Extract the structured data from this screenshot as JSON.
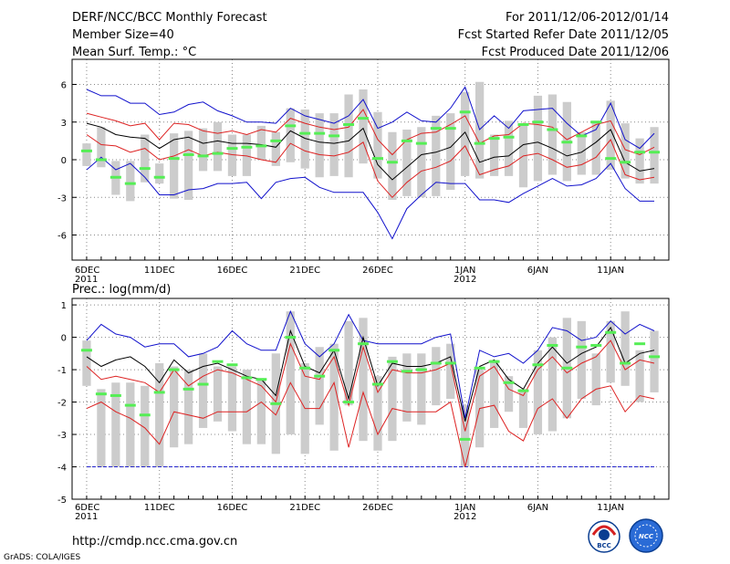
{
  "header": {
    "title": "DERF/NCC/BCC Monthly Forecast",
    "member_size": "Member Size=40",
    "panel1_label": "Mean Surf. Temp.: °C",
    "for_range": "For 2011/12/06-2012/01/14",
    "started": "Fcst Started Refer Date 2011/12/05",
    "produced": "Fcst Produced Date 2011/12/06"
  },
  "footer": {
    "url": "http://cmdp.ncc.cma.gov.cn",
    "credit": "GrADS: COLA/IGES",
    "logo_left": "BCC",
    "logo_right": "NCC"
  },
  "colors": {
    "box": "#cccccc",
    "median": "#55ee55",
    "mean": "#000000",
    "spread": "#dd2222",
    "extreme": "#1111cc",
    "floor": "#2222cc",
    "grid": "#888888"
  },
  "chart_data": [
    {
      "type": "box-plume",
      "name": "temperature",
      "title": "Mean Surf. Temp.: °C",
      "ylim": [
        -8,
        8
      ],
      "yticks": [
        -6,
        -3,
        0,
        3,
        6
      ],
      "ytick_labels": [
        "-6",
        "-3",
        "0",
        "3",
        "6"
      ],
      "xtick_labels": [
        {
          "day": 1,
          "label": "6DEC",
          "sub": "2011"
        },
        {
          "day": 6,
          "label": "11DEC"
        },
        {
          "day": 11,
          "label": "16DEC"
        },
        {
          "day": 16,
          "label": "21DEC"
        },
        {
          "day": 21,
          "label": "26DEC"
        },
        {
          "day": 27,
          "label": "1JAN",
          "sub": "2012"
        },
        {
          "day": 32,
          "label": "6JAN"
        },
        {
          "day": 37,
          "label": "11JAN"
        }
      ],
      "days": [
        1,
        2,
        3,
        4,
        5,
        6,
        7,
        8,
        9,
        10,
        11,
        12,
        13,
        14,
        15,
        16,
        17,
        18,
        19,
        20,
        21,
        22,
        23,
        24,
        25,
        26,
        27,
        28,
        29,
        30,
        31,
        32,
        33,
        34,
        35,
        36,
        37,
        38,
        39,
        40
      ],
      "box_low": [
        -0.5,
        -0.6,
        -2.8,
        -3.3,
        -1.8,
        -1.9,
        -3.1,
        -3.2,
        -0.9,
        -0.9,
        -1.3,
        -1.3,
        0.0,
        -0.5,
        -0.2,
        -0.7,
        -1.4,
        -1.3,
        -1.4,
        -0.3,
        -1.5,
        -3.2,
        -2.9,
        -3.0,
        -2.9,
        -2.4,
        -1.3,
        -1.5,
        -1.3,
        -1.3,
        -2.2,
        -1.7,
        -1.2,
        -1.7,
        -1.2,
        -1.2,
        -0.8,
        -1.5,
        -1.9,
        -1.9
      ],
      "box_high": [
        1.3,
        2.6,
        -0.1,
        -0.1,
        2.0,
        -0.3,
        2.1,
        2.3,
        2.5,
        3.0,
        2.0,
        2.0,
        2.7,
        2.2,
        4.1,
        4.0,
        3.7,
        3.7,
        5.2,
        5.6,
        3.8,
        2.2,
        2.4,
        2.6,
        3.5,
        3.7,
        5.4,
        6.2,
        2.0,
        3.1,
        2.9,
        5.1,
        5.2,
        4.6,
        2.2,
        3.0,
        4.7,
        2.9,
        1.7,
        2.6
      ],
      "median": [
        0.7,
        0.0,
        -1.4,
        -1.9,
        -0.7,
        -1.4,
        0.1,
        0.4,
        0.3,
        0.5,
        0.9,
        1.0,
        1.1,
        1.5,
        2.7,
        2.1,
        2.1,
        1.9,
        2.8,
        3.3,
        0.1,
        -0.2,
        1.5,
        1.3,
        2.5,
        2.5,
        3.8,
        1.3,
        1.7,
        1.8,
        2.8,
        3.0,
        2.4,
        1.4,
        1.9,
        3.0,
        0.1,
        -0.2,
        0.6,
        0.6
      ],
      "series": [
        {
          "name": "max",
          "role": "extreme",
          "values": [
            5.6,
            5.1,
            5.1,
            4.5,
            4.5,
            3.6,
            3.8,
            4.4,
            4.6,
            3.9,
            3.5,
            3.0,
            3.0,
            2.9,
            4.1,
            3.5,
            3.2,
            2.9,
            3.5,
            4.8,
            2.5,
            3.0,
            3.8,
            3.1,
            3.0,
            4.1,
            5.8,
            2.4,
            3.5,
            2.5,
            3.9,
            4.0,
            4.1,
            2.9,
            1.9,
            2.4,
            4.5,
            1.6,
            0.9,
            2.1
          ]
        },
        {
          "name": "mean+1sd",
          "role": "spread",
          "values": [
            3.7,
            3.4,
            3.1,
            2.7,
            2.9,
            1.6,
            2.9,
            2.8,
            2.3,
            2.1,
            2.3,
            2.0,
            2.4,
            2.2,
            3.3,
            2.9,
            2.6,
            2.4,
            2.6,
            4.0,
            1.6,
            0.4,
            1.6,
            2.1,
            2.2,
            2.8,
            3.5,
            1.3,
            1.9,
            2.0,
            2.9,
            2.8,
            2.6,
            1.6,
            2.2,
            2.8,
            3.1,
            0.8,
            0.4,
            1.0
          ]
        },
        {
          "name": "mean",
          "role": "mean",
          "values": [
            2.9,
            2.6,
            2.0,
            1.8,
            1.7,
            0.9,
            1.6,
            1.8,
            1.3,
            1.5,
            1.3,
            1.3,
            1.2,
            1.0,
            2.3,
            1.7,
            1.4,
            1.3,
            1.5,
            2.5,
            -0.4,
            -1.6,
            -0.6,
            0.4,
            0.6,
            1.0,
            2.2,
            -0.2,
            0.2,
            0.3,
            1.2,
            1.4,
            0.9,
            0.3,
            0.6,
            1.4,
            2.4,
            -0.2,
            -0.9,
            -0.7
          ]
        },
        {
          "name": "mean-1sd",
          "role": "spread",
          "values": [
            2.0,
            1.2,
            1.1,
            0.6,
            0.9,
            0.0,
            0.3,
            0.8,
            0.3,
            0.6,
            0.4,
            0.3,
            0.0,
            -0.2,
            1.3,
            0.7,
            0.4,
            0.3,
            0.6,
            1.4,
            -1.7,
            -3.0,
            -1.8,
            -0.9,
            -0.6,
            -0.1,
            1.1,
            -1.2,
            -0.8,
            -0.5,
            0.3,
            0.5,
            0.0,
            -0.6,
            -0.4,
            0.2,
            1.6,
            -1.2,
            -1.6,
            -1.4
          ]
        },
        {
          "name": "min",
          "role": "extreme",
          "values": [
            -0.8,
            0.2,
            -0.8,
            -0.3,
            -1.4,
            -2.8,
            -2.8,
            -2.4,
            -2.3,
            -1.9,
            -1.9,
            -1.8,
            -3.1,
            -1.8,
            -1.5,
            -1.4,
            -2.2,
            -2.6,
            -2.6,
            -2.6,
            -4.2,
            -6.3,
            -3.9,
            -2.8,
            -1.8,
            -1.9,
            -1.9,
            -3.2,
            -3.2,
            -3.4,
            -2.7,
            -2.1,
            -1.5,
            -2.1,
            -2.0,
            -1.5,
            -0.3,
            -2.3,
            -3.3,
            -3.3
          ]
        }
      ]
    },
    {
      "type": "box-plume",
      "name": "precipitation",
      "title": "Prec.: log(mm/d)",
      "ylim": [
        -5,
        1.2
      ],
      "yticks": [
        -5,
        -4,
        -3,
        -2,
        -1,
        0,
        1
      ],
      "ytick_labels": [
        "-5",
        "-4",
        "-3",
        "-2",
        "-1",
        "0",
        "1"
      ],
      "xtick_labels": [
        {
          "day": 1,
          "label": "6DEC",
          "sub": "2011"
        },
        {
          "day": 6,
          "label": "11DEC"
        },
        {
          "day": 11,
          "label": "16DEC"
        },
        {
          "day": 16,
          "label": "21DEC"
        },
        {
          "day": 21,
          "label": "26DEC"
        },
        {
          "day": 27,
          "label": "1JAN",
          "sub": "2012"
        },
        {
          "day": 32,
          "label": "6JAN"
        },
        {
          "day": 37,
          "label": "11JAN"
        }
      ],
      "floor_value": -4,
      "days": [
        1,
        2,
        3,
        4,
        5,
        6,
        7,
        8,
        9,
        10,
        11,
        12,
        13,
        14,
        15,
        16,
        17,
        18,
        19,
        20,
        21,
        22,
        23,
        24,
        25,
        26,
        27,
        28,
        29,
        30,
        31,
        32,
        33,
        34,
        35,
        36,
        37,
        38,
        39,
        40
      ],
      "box_low": [
        -1.5,
        -4,
        -4,
        -4,
        -4,
        -4,
        -3.4,
        -3.3,
        -2.8,
        -2.6,
        -2.9,
        -3.3,
        -3.3,
        -3.6,
        -3.0,
        -3.6,
        -2.7,
        -3.5,
        -2.1,
        -3.2,
        -3.5,
        -3.2,
        -2.6,
        -2.7,
        -2.1,
        -1.9,
        -4,
        -3.4,
        -2.8,
        -2.3,
        -2.8,
        -3.0,
        -2.9,
        -2.5,
        -1.9,
        -2.1,
        -1.4,
        -1.5,
        -2.0,
        -1.7
      ],
      "box_high": [
        -0.1,
        -1.6,
        -1.4,
        -1.4,
        -1.5,
        -0.8,
        -0.9,
        -1.0,
        -0.5,
        -0.9,
        -0.9,
        -1.0,
        -1.3,
        -0.5,
        0.8,
        -0.8,
        -0.3,
        -0.2,
        0.5,
        0.6,
        -1.2,
        -0.6,
        -0.5,
        -0.5,
        -0.3,
        -0.2,
        -2.1,
        -1.0,
        -0.7,
        -1.2,
        -1.6,
        -0.4,
        0.0,
        0.6,
        0.5,
        -0.5,
        0.5,
        0.8,
        -0.4,
        0.2
      ],
      "median": [
        -0.4,
        -1.75,
        -1.8,
        -2.1,
        -2.4,
        -1.7,
        -1.0,
        -1.6,
        -1.45,
        -0.75,
        -0.85,
        -1.25,
        -1.3,
        -2.05,
        0.0,
        -0.95,
        -1.2,
        -0.4,
        -2.0,
        -0.2,
        -1.45,
        -0.75,
        -1.05,
        -1.0,
        -0.8,
        -0.8,
        -3.15,
        -0.95,
        -0.75,
        -1.4,
        -1.65,
        -0.85,
        -0.25,
        -0.95,
        -0.3,
        -0.25,
        0.15,
        -0.8,
        -0.2,
        -0.6
      ],
      "series": [
        {
          "name": "max",
          "role": "extreme",
          "values": [
            -0.1,
            0.4,
            0.1,
            0.0,
            -0.3,
            -0.2,
            -0.2,
            -0.6,
            -0.5,
            -0.3,
            0.2,
            -0.2,
            -0.4,
            -0.4,
            0.8,
            -0.2,
            -0.6,
            -0.2,
            0.7,
            -0.1,
            -0.2,
            -0.2,
            -0.2,
            -0.2,
            0.0,
            0.1,
            -2.5,
            -0.4,
            -0.6,
            -0.5,
            -0.8,
            -0.4,
            0.3,
            0.2,
            -0.1,
            0.0,
            0.5,
            0.1,
            0.4,
            0.2
          ]
        },
        {
          "name": "mean",
          "role": "mean",
          "values": [
            -0.6,
            -0.9,
            -0.7,
            -0.6,
            -0.9,
            -1.4,
            -0.7,
            -1.1,
            -0.9,
            -0.8,
            -1.0,
            -1.2,
            -1.3,
            -1.8,
            0.2,
            -0.9,
            -1.1,
            -0.4,
            -1.9,
            0.0,
            -1.5,
            -0.8,
            -0.9,
            -0.9,
            -0.8,
            -0.6,
            -2.6,
            -0.9,
            -0.7,
            -1.3,
            -1.6,
            -0.8,
            -0.3,
            -0.8,
            -0.5,
            -0.3,
            0.3,
            -0.8,
            -0.5,
            -0.4
          ]
        },
        {
          "name": "mean-1sd",
          "role": "spread",
          "values": [
            -0.9,
            -1.3,
            -1.2,
            -1.3,
            -1.4,
            -1.7,
            -1.0,
            -1.5,
            -1.2,
            -1.0,
            -1.1,
            -1.3,
            -1.5,
            -2.0,
            -0.2,
            -1.2,
            -1.3,
            -0.6,
            -2.1,
            -0.3,
            -1.7,
            -1.0,
            -1.1,
            -1.1,
            -1.0,
            -0.8,
            -2.9,
            -1.2,
            -0.9,
            -1.6,
            -1.8,
            -1.0,
            -0.6,
            -1.1,
            -0.8,
            -0.6,
            -0.1,
            -1.0,
            -0.7,
            -0.8
          ]
        },
        {
          "name": "min",
          "role": "spread",
          "values": [
            -2.2,
            -2.0,
            -2.3,
            -2.5,
            -2.8,
            -3.3,
            -2.3,
            -2.4,
            -2.5,
            -2.3,
            -2.3,
            -2.3,
            -2.0,
            -2.4,
            -1.4,
            -2.2,
            -2.2,
            -1.4,
            -3.4,
            -1.7,
            -3.0,
            -2.2,
            -2.3,
            -2.3,
            -2.3,
            -2.0,
            -4.0,
            -2.2,
            -2.1,
            -2.9,
            -3.2,
            -2.2,
            -1.9,
            -2.5,
            -1.9,
            -1.6,
            -1.5,
            -2.3,
            -1.8,
            -1.9
          ]
        }
      ]
    }
  ]
}
